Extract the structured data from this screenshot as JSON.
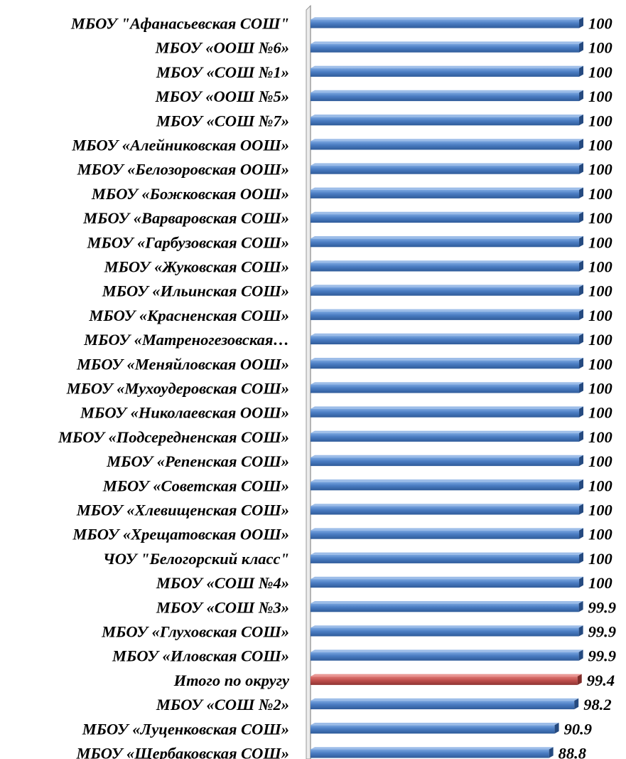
{
  "chart_data": {
    "type": "bar",
    "orientation": "horizontal",
    "xlim": [
      0,
      100
    ],
    "grid": false,
    "legend": "none",
    "colors": {
      "bar": "#4a7cc2",
      "highlight": "#c0504d"
    },
    "categories": [
      "МБОУ \"Афанасьевская СОШ\"",
      "МБОУ «ООШ №6»",
      "МБОУ «СОШ №1»",
      "МБОУ «ООШ №5»",
      "МБОУ «СОШ №7»",
      "МБОУ «Алейниковская ООШ»",
      "МБОУ «Белозоровская ООШ»",
      "МБОУ «Божковская ООШ»",
      "МБОУ «Варваровская СОШ»",
      "МБОУ  «Гарбузовская СОШ»",
      "МБОУ «Жуковская СОШ»",
      "МБОУ «Ильинская СОШ»",
      "МБОУ «Красненская СОШ»",
      "МБОУ «Матреногезовская…",
      "МБОУ «Меняйловская ООШ»",
      "МБОУ «Мухоудеровская СОШ»",
      "МБОУ «Николаевская ООШ»",
      "МБОУ «Подсередненская СОШ»",
      "МБОУ «Репенская СОШ»",
      "МБОУ «Советская СОШ»",
      "МБОУ «Хлевищенская СОШ»",
      "МБОУ «Хрещатовская ООШ»",
      "ЧОУ \"Белогорский класс\"",
      "МБОУ «СОШ №4»",
      "МБОУ «СОШ №3»",
      "МБОУ «Глуховская СОШ»",
      "МБОУ «Иловская СОШ»",
      "Итого по округу",
      "МБОУ «СОШ №2»",
      "МБОУ «Луценковская СОШ»",
      "МБОУ «Щербаковская СОШ»"
    ],
    "values": [
      100,
      100,
      100,
      100,
      100,
      100,
      100,
      100,
      100,
      100,
      100,
      100,
      100,
      100,
      100,
      100,
      100,
      100,
      100,
      100,
      100,
      100,
      100,
      100,
      99.9,
      99.9,
      99.9,
      99.4,
      98.2,
      90.9,
      88.8
    ],
    "value_labels": [
      "100",
      "100",
      "100",
      "100",
      "100",
      "100",
      "100",
      "100",
      "100",
      "100",
      "100",
      "100",
      "100",
      "100",
      "100",
      "100",
      "100",
      "100",
      "100",
      "100",
      "100",
      "100",
      "100",
      "100",
      "99.9",
      "99.9",
      "99.9",
      "99.4",
      "98.2",
      "90.9",
      "88.8"
    ],
    "highlight_index": 27
  }
}
